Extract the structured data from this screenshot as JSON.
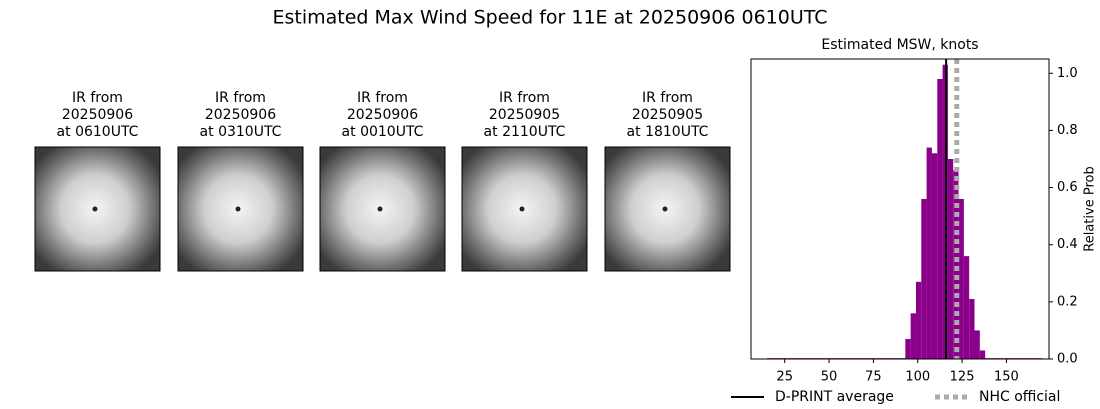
{
  "title": "Estimated Max Wind Speed for 11E at 20250906 0610UTC",
  "images": [
    {
      "caption": [
        "IR from",
        "20250906",
        "at 0610UTC"
      ]
    },
    {
      "caption": [
        "IR from",
        "20250906",
        "at 0310UTC"
      ]
    },
    {
      "caption": [
        "IR from",
        "20250906",
        "at 0010UTC"
      ]
    },
    {
      "caption": [
        "IR from",
        "20250905",
        "at 2110UTC"
      ]
    },
    {
      "caption": [
        "IR from",
        "20250905",
        "at 1810UTC"
      ]
    }
  ],
  "chart_data": {
    "type": "histogram",
    "title": "Estimated MSW, knots",
    "ylabel": "Relative Prob",
    "color": "#8b008b",
    "bins": [
      15,
      93,
      96,
      99,
      102,
      105,
      108,
      111,
      114,
      117,
      120,
      123,
      126,
      129,
      132,
      135,
      138,
      170
    ],
    "values": [
      0.003,
      0.07,
      0.16,
      0.27,
      0.56,
      0.74,
      0.72,
      0.98,
      1.03,
      0.7,
      0.66,
      0.56,
      0.36,
      0.21,
      0.1,
      0.03,
      0.003
    ],
    "lines": [
      {
        "name": "D-PRINT average",
        "value": 116,
        "color": "#000000",
        "style": "solid"
      },
      {
        "name": "NHC official",
        "value": 122,
        "color": "#aaaaaa",
        "style": "dotted"
      }
    ],
    "xlim": [
      6,
      174
    ],
    "xticks": [
      25,
      50,
      75,
      100,
      125,
      150
    ],
    "ylim": [
      0,
      1.05
    ],
    "yticks": [
      {
        "value": 0,
        "label": "0.0"
      },
      0.2,
      0.4,
      0.6,
      0.8,
      {
        "value": 1,
        "label": "1.0"
      }
    ],
    "y_axis_side": "right",
    "legend": "bottom"
  }
}
